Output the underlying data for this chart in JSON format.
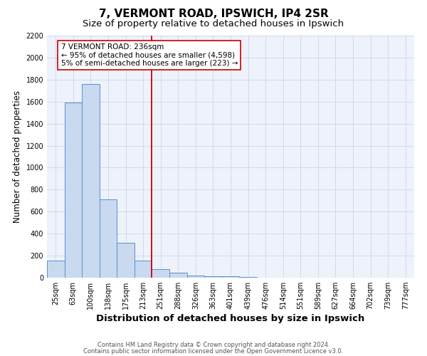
{
  "title": "7, VERMONT ROAD, IPSWICH, IP4 2SR",
  "subtitle": "Size of property relative to detached houses in Ipswich",
  "xlabel": "Distribution of detached houses by size in Ipswich",
  "ylabel": "Number of detached properties",
  "footnote1": "Contains HM Land Registry data © Crown copyright and database right 2024.",
  "footnote2": "Contains public sector information licensed under the Open Government Licence v3.0.",
  "bin_labels": [
    "25sqm",
    "63sqm",
    "100sqm",
    "138sqm",
    "175sqm",
    "213sqm",
    "251sqm",
    "288sqm",
    "326sqm",
    "363sqm",
    "401sqm",
    "439sqm",
    "476sqm",
    "514sqm",
    "551sqm",
    "589sqm",
    "627sqm",
    "664sqm",
    "702sqm",
    "739sqm",
    "777sqm"
  ],
  "bar_values": [
    155,
    1590,
    1760,
    710,
    315,
    155,
    80,
    48,
    20,
    10,
    15,
    5,
    0,
    0,
    0,
    0,
    0,
    0,
    0,
    0,
    0
  ],
  "bar_color": "#c8d9f0",
  "bar_edge_color": "#5b8fcc",
  "red_line_bin_index": 6,
  "red_line_color": "#cc0000",
  "annotation_text": "7 VERMONT ROAD: 236sqm\n← 95% of detached houses are smaller (4,598)\n5% of semi-detached houses are larger (223) →",
  "annotation_box_color": "#ffffff",
  "annotation_box_edge": "#cc0000",
  "ylim": [
    0,
    2200
  ],
  "yticks": [
    0,
    200,
    400,
    600,
    800,
    1000,
    1200,
    1400,
    1600,
    1800,
    2000,
    2200
  ],
  "grid_color": "#c5cfe8",
  "background_color": "#eef2fb",
  "title_fontsize": 11,
  "subtitle_fontsize": 9.5,
  "xlabel_fontsize": 9.5,
  "ylabel_fontsize": 8.5,
  "tick_fontsize": 7,
  "annotation_fontsize": 7.5,
  "footnote_fontsize": 6
}
